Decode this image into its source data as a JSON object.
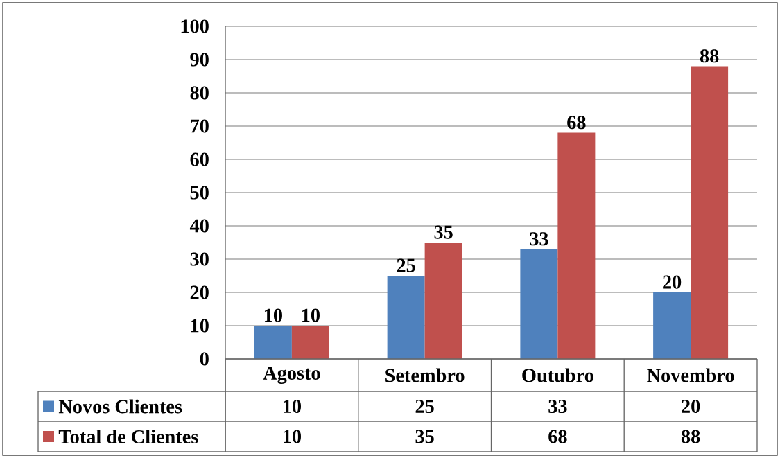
{
  "chart_data": {
    "type": "bar",
    "categories": [
      "Agosto",
      "Setembro",
      "Outubro",
      "Novembro"
    ],
    "series": [
      {
        "name": "Novos Clientes",
        "color": "#4f81bd",
        "values": [
          10,
          25,
          33,
          20
        ]
      },
      {
        "name": "Total de Clientes",
        "color": "#c0504d",
        "values": [
          10,
          35,
          68,
          88
        ]
      }
    ],
    "ylim": [
      0,
      100
    ],
    "yticks": [
      0,
      10,
      20,
      30,
      40,
      50,
      60,
      70,
      80,
      90,
      100
    ],
    "grid": "y",
    "legend": "bottom",
    "data_labels": true,
    "annotations": [
      "10",
      "25",
      "33",
      "20",
      "10",
      "35",
      "68",
      "88"
    ]
  }
}
